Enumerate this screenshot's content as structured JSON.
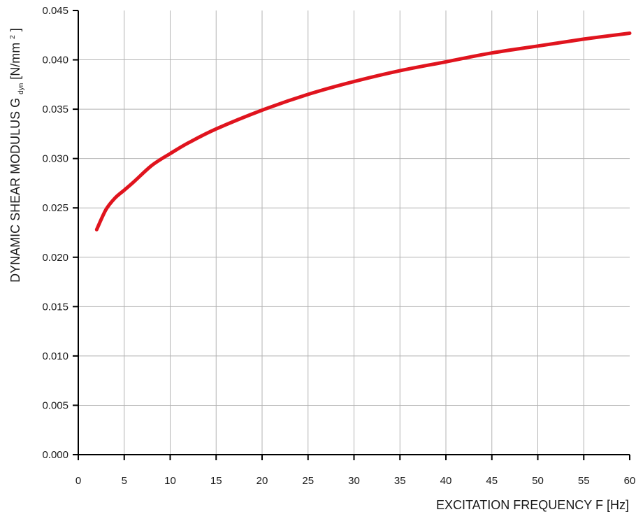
{
  "chart_data": {
    "type": "line",
    "xlabel": "EXCITATION FREQUENCY F [Hz]",
    "ylabel": {
      "main": "DYNAMIC SHEAR MODULUS G",
      "subscript": "dyn",
      "unit_open": " [N/mm",
      "unit_sup": "2",
      "unit_close": "]"
    },
    "xlim": [
      0,
      60
    ],
    "ylim": [
      0,
      0.045
    ],
    "xticks": [
      "0",
      "5",
      "10",
      "15",
      "20",
      "25",
      "30",
      "35",
      "40",
      "45",
      "50",
      "55",
      "60"
    ],
    "yticks": [
      "0.000",
      "0.005",
      "0.010",
      "0.015",
      "0.020",
      "0.025",
      "0.030",
      "0.035",
      "0.040",
      "0.045"
    ],
    "grid": true,
    "line_color": "#e0141e",
    "series": [
      {
        "x": [
          2,
          3,
          4,
          5,
          6,
          8,
          10,
          12,
          15,
          20,
          25,
          30,
          35,
          40,
          45,
          50,
          55,
          60
        ],
        "y": [
          0.0228,
          0.0248,
          0.026,
          0.0268,
          0.0276,
          0.0293,
          0.0305,
          0.0316,
          0.033,
          0.0349,
          0.0365,
          0.0378,
          0.0389,
          0.0398,
          0.0407,
          0.0414,
          0.0421,
          0.0427
        ]
      }
    ]
  }
}
